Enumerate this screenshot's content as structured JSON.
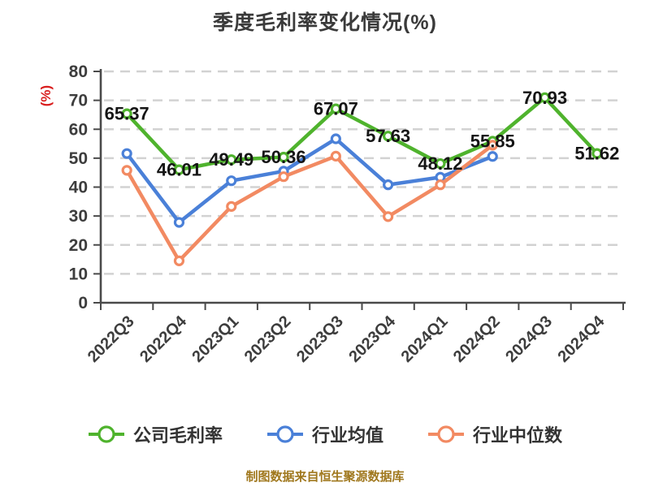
{
  "footer": "制图数据来自恒生聚源数据库",
  "chart_data": {
    "type": "line",
    "title": "季度毛利率变化情况(%)",
    "y_axis_name": "(%)",
    "categories": [
      "2022Q3",
      "2022Q4",
      "2023Q1",
      "2023Q2",
      "2023Q3",
      "2023Q4",
      "2024Q1",
      "2024Q2",
      "2024Q3",
      "2024Q4"
    ],
    "series": [
      {
        "name": "公司毛利率",
        "color": "#4fb32d",
        "values": [
          65.37,
          46.01,
          49.49,
          50.36,
          67.07,
          57.63,
          48.12,
          55.85,
          70.93,
          51.62
        ],
        "labels_shown": true
      },
      {
        "name": "行业均值",
        "color": "#4a80d8",
        "values": [
          51.6,
          27.8,
          42.2,
          45.5,
          56.7,
          40.8,
          43.4,
          50.6
        ],
        "labels_shown": false
      },
      {
        "name": "行业中位数",
        "color": "#f28a62",
        "values": [
          45.8,
          14.5,
          33.3,
          43.6,
          50.7,
          29.8,
          40.8,
          54.5
        ],
        "labels_shown": false
      }
    ],
    "ylim": [
      0,
      80
    ],
    "y_ticks": [
      0,
      10,
      20,
      30,
      40,
      50,
      60,
      70,
      80
    ],
    "grid": "horizontal-dashed",
    "legend_position": "bottom",
    "colors": {
      "title": "#3a3a3a",
      "axis": "#4a4a4a",
      "grid_line": "#d2d2d2",
      "tick_label": "#3d3d3d",
      "data_label": "#151515",
      "y_axis_name": "#d91e1e",
      "footer": "#a0781e",
      "marker_fill": "#ffffff"
    }
  }
}
